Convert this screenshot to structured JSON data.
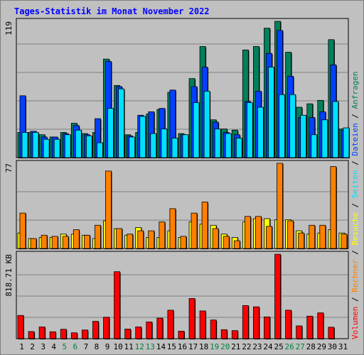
{
  "page": {
    "title": "Tages-Statistik im Monat November 2022"
  },
  "colors": {
    "background": "#c0c0c0",
    "grid": "#808080",
    "anfragen": "#00805c",
    "dateien": "#0040ff",
    "seiten": "#00e0ff",
    "besuche": "#ffff00",
    "rechner": "#ff8000",
    "volumen": "#ff0000",
    "weekday_label": "#000000",
    "weekend_label": "#008040"
  },
  "chart_data": {
    "type": "bar",
    "days": [
      "1",
      "2",
      "3",
      "4",
      "5",
      "6",
      "7",
      "8",
      "9",
      "10",
      "11",
      "12",
      "13",
      "14",
      "15",
      "16",
      "17",
      "18",
      "19",
      "20",
      "21",
      "22",
      "23",
      "24",
      "25",
      "26",
      "27",
      "28",
      "29",
      "30",
      "31"
    ],
    "weekend_days": [
      "5",
      "6",
      "12",
      "13",
      "19",
      "20",
      "26",
      "27"
    ],
    "legend_right": [
      {
        "key": "volumen",
        "label": "Volumen"
      },
      {
        "key": "rechner",
        "label": "Rechner"
      },
      {
        "key": "besuche",
        "label": "Besuche"
      },
      {
        "key": "seiten",
        "label": "Seiten"
      },
      {
        "key": "dateien",
        "label": "Dateien"
      },
      {
        "key": "anfragen",
        "label": "Anfragen"
      }
    ],
    "panels": [
      {
        "id": "hits",
        "max_label": "119",
        "ymax": 119,
        "series": [
          {
            "name": "Anfragen",
            "color_key": "anfragen",
            "values": [
              22,
              22,
              20,
              18,
              22,
              30,
              21,
              22,
              86,
              63,
              20,
              22,
              38,
              42,
              57,
              21,
              69,
              97,
              33,
              25,
              24,
              94,
              97,
              113,
              119,
              92,
              44,
              47,
              50,
              103,
              25
            ]
          },
          {
            "name": "Dateien",
            "color_key": "dateien",
            "values": [
              54,
              23,
              18,
              18,
              21,
              28,
              20,
              34,
              84,
              62,
              19,
              37,
              40,
              43,
              59,
              20,
              62,
              79,
              31,
              22,
              20,
              49,
              58,
              91,
              111,
              71,
              35,
              35,
              40,
              81,
              24
            ]
          },
          {
            "name": "Seiten",
            "color_key": "seiten",
            "values": [
              22,
              22,
              16,
              16,
              20,
              24,
              19,
              13,
              43,
              60,
              18,
              36,
              21,
              25,
              17,
              20,
              48,
              58,
              25,
              21,
              17,
              48,
              44,
              79,
              55,
              55,
              37,
              20,
              33,
              49,
              26
            ]
          }
        ]
      },
      {
        "id": "visits",
        "max_label": "77",
        "ymax": 77,
        "series": [
          {
            "name": "Besuche",
            "color_key": "besuche",
            "values": [
              14,
              9,
              10,
              10,
              13,
              13,
              12,
              9,
              25,
              18,
              12,
              19,
              10,
              10,
              16,
              10,
              24,
              22,
              21,
              13,
              10,
              24,
              27,
              27,
              26,
              26,
              16,
              13,
              14,
              17,
              14
            ]
          },
          {
            "name": "Rechner",
            "color_key": "rechner",
            "values": [
              32,
              9,
              12,
              11,
              11,
              17,
              12,
              21,
              70,
              18,
              13,
              16,
              16,
              24,
              36,
              11,
              32,
              42,
              18,
              11,
              7,
              29,
              29,
              20,
              77,
              25,
              14,
              21,
              21,
              74,
              13
            ]
          }
        ]
      },
      {
        "id": "volume",
        "max_label": "818.71 KB",
        "ymax": 818.71,
        "unit": "KB",
        "series": [
          {
            "name": "Volumen",
            "color_key": "volumen",
            "values": [
              225,
              69,
              114,
              67,
              91,
              57,
              84,
              168,
              208,
              649,
              93,
              114,
              162,
              199,
              276,
              73,
              389,
              269,
              181,
              87,
              78,
              321,
              309,
              211,
              818,
              276,
              124,
              218,
              250,
              111,
              0
            ]
          }
        ]
      }
    ]
  }
}
